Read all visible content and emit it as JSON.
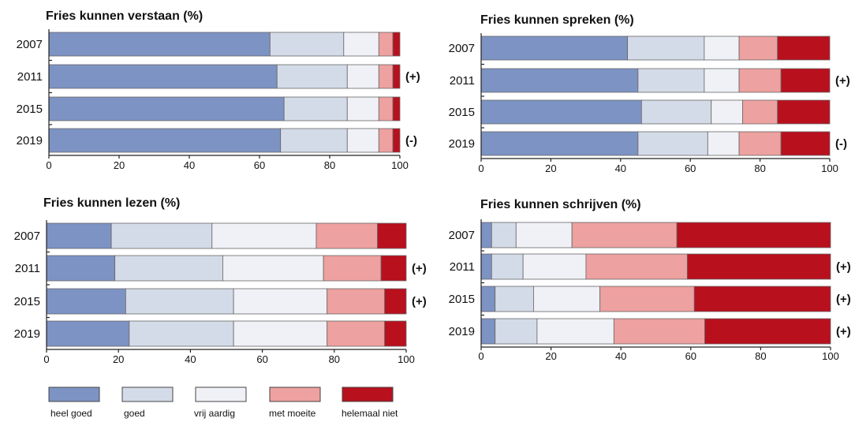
{
  "colors": {
    "heel_goed": "#7d93c4",
    "goed": "#d4dbe8",
    "vrij_aardig": "#eff1f6",
    "met_moeite": "#eda1a0",
    "helemaal_niet": "#b9101e",
    "outline": "#666666"
  },
  "legend": [
    {
      "key": "heel_goed",
      "label": "heel goed"
    },
    {
      "key": "goed",
      "label": "goed"
    },
    {
      "key": "vrij_aardig",
      "label": "vrij aardig"
    },
    {
      "key": "met_moeite",
      "label": "met moeite"
    },
    {
      "key": "helemaal_niet",
      "label": "helemaal niet"
    }
  ],
  "chart_data": [
    {
      "type": "bar",
      "stacked": true,
      "orientation": "horizontal",
      "title": "Fries kunnen verstaan (%)",
      "categories": [
        "2007",
        "2011",
        "2015",
        "2019"
      ],
      "series": [
        {
          "name": "heel goed",
          "values": [
            63,
            65,
            67,
            66
          ]
        },
        {
          "name": "goed",
          "values": [
            21,
            20,
            18,
            19
          ]
        },
        {
          "name": "vrij aardig",
          "values": [
            10,
            9,
            9,
            9
          ]
        },
        {
          "name": "met moeite",
          "values": [
            4,
            4,
            4,
            4
          ]
        },
        {
          "name": "helemaal niet",
          "values": [
            2,
            2,
            2,
            2
          ]
        }
      ],
      "annotations": [
        "",
        "(+)",
        "",
        "(-)"
      ],
      "xlim": [
        0,
        100
      ],
      "xticks": [
        0,
        20,
        40,
        60,
        80,
        100
      ]
    },
    {
      "type": "bar",
      "stacked": true,
      "orientation": "horizontal",
      "title": "Fries kunnen spreken (%)",
      "categories": [
        "2007",
        "2011",
        "2015",
        "2019"
      ],
      "series": [
        {
          "name": "heel goed",
          "values": [
            42,
            45,
            46,
            45
          ]
        },
        {
          "name": "goed",
          "values": [
            22,
            19,
            20,
            20
          ]
        },
        {
          "name": "vrij aardig",
          "values": [
            10,
            10,
            9,
            9
          ]
        },
        {
          "name": "met moeite",
          "values": [
            11,
            12,
            10,
            12
          ]
        },
        {
          "name": "helemaal niet",
          "values": [
            15,
            14,
            15,
            14
          ]
        }
      ],
      "annotations": [
        "",
        "(+)",
        "",
        "(-)"
      ],
      "xlim": [
        0,
        100
      ],
      "xticks": [
        0,
        20,
        40,
        60,
        80,
        100
      ]
    },
    {
      "type": "bar",
      "stacked": true,
      "orientation": "horizontal",
      "title": "Fries kunnen lezen (%)",
      "categories": [
        "2007",
        "2011",
        "2015",
        "2019"
      ],
      "series": [
        {
          "name": "heel goed",
          "values": [
            18,
            19,
            22,
            23
          ]
        },
        {
          "name": "goed",
          "values": [
            28,
            30,
            30,
            29
          ]
        },
        {
          "name": "vrij aardig",
          "values": [
            29,
            28,
            26,
            26
          ]
        },
        {
          "name": "met moeite",
          "values": [
            17,
            16,
            16,
            16
          ]
        },
        {
          "name": "helemaal niet",
          "values": [
            8,
            7,
            6,
            6
          ]
        }
      ],
      "annotations": [
        "",
        "(+)",
        "(+)",
        ""
      ],
      "xlim": [
        0,
        100
      ],
      "xticks": [
        0,
        20,
        40,
        60,
        80,
        100
      ]
    },
    {
      "type": "bar",
      "stacked": true,
      "orientation": "horizontal",
      "title": "Fries kunnen schrijven (%)",
      "categories": [
        "2007",
        "2011",
        "2015",
        "2019"
      ],
      "series": [
        {
          "name": "heel goed",
          "values": [
            3,
            3,
            4,
            4
          ]
        },
        {
          "name": "goed",
          "values": [
            7,
            9,
            11,
            12
          ]
        },
        {
          "name": "vrij aardig",
          "values": [
            16,
            18,
            19,
            22
          ]
        },
        {
          "name": "met moeite",
          "values": [
            30,
            29,
            27,
            26
          ]
        },
        {
          "name": "helemaal niet",
          "values": [
            44,
            41,
            39,
            36
          ]
        }
      ],
      "annotations": [
        "",
        "(+)",
        "(+)",
        "(+)"
      ],
      "xlim": [
        0,
        100
      ],
      "xticks": [
        0,
        20,
        40,
        60,
        80,
        100
      ]
    }
  ]
}
